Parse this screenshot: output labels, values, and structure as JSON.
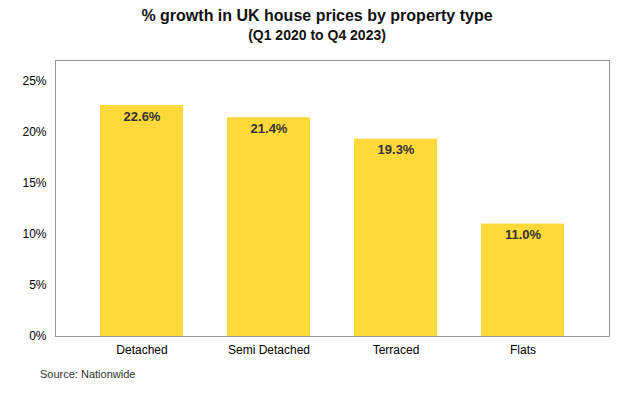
{
  "chart_data": {
    "type": "bar",
    "title": "% growth in UK house prices by property type",
    "subtitle": "(Q1 2020 to Q4 2023)",
    "categories": [
      "Detached",
      "Semi Detached",
      "Terraced",
      "Flats"
    ],
    "values": [
      22.6,
      21.4,
      19.3,
      11.0
    ],
    "value_labels": [
      "22.6%",
      "21.4%",
      "19.3%",
      "11.0%"
    ],
    "data_labels": true,
    "color": "#FFD93A",
    "ylim": [
      0,
      27
    ],
    "yticks": [
      {
        "value": 0,
        "label": "0%"
      },
      {
        "value": 5,
        "label": "5%"
      },
      {
        "value": 10,
        "label": "10%"
      },
      {
        "value": 15,
        "label": "15%"
      },
      {
        "value": 20,
        "label": "20%"
      },
      {
        "value": 25,
        "label": "25%"
      }
    ],
    "grid": false,
    "annotations": [
      "Source: Nationwide"
    ]
  }
}
